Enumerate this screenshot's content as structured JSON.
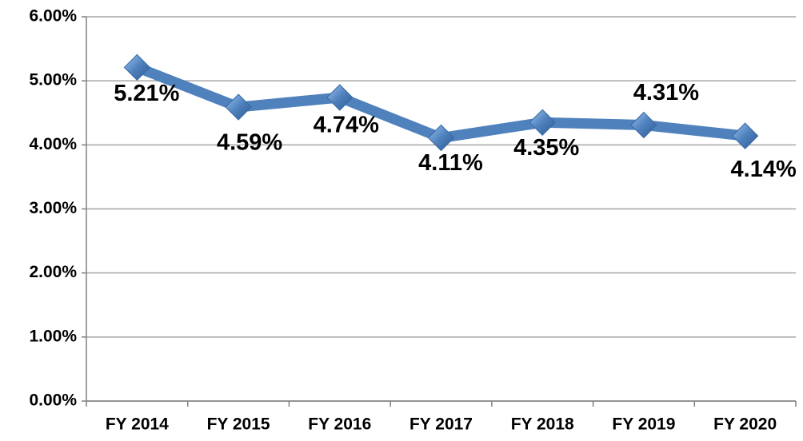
{
  "chart_data": {
    "type": "line",
    "categories": [
      "FY 2014",
      "FY 2015",
      "FY 2016",
      "FY 2017",
      "FY 2018",
      "FY 2019",
      "FY 2020"
    ],
    "series": [
      {
        "color": "#4f81bd",
        "values": [
          5.21,
          4.59,
          4.74,
          4.11,
          4.35,
          4.31,
          4.14
        ],
        "value_labels": [
          "5.21%",
          "4.59%",
          "4.74%",
          "4.11%",
          "4.35%",
          "4.31%",
          "4.14%"
        ]
      }
    ],
    "ylim": [
      0,
      6
    ],
    "yticks": [
      {
        "value": 0,
        "label": "0.00%"
      },
      {
        "value": 1,
        "label": "1.00%"
      },
      {
        "value": 2,
        "label": "2.00%"
      },
      {
        "value": 3,
        "label": "3.00%"
      },
      {
        "value": 4,
        "label": "4.00%"
      },
      {
        "value": 5,
        "label": "5.00%"
      },
      {
        "value": 6,
        "label": "6.00%"
      }
    ],
    "grid": true
  }
}
